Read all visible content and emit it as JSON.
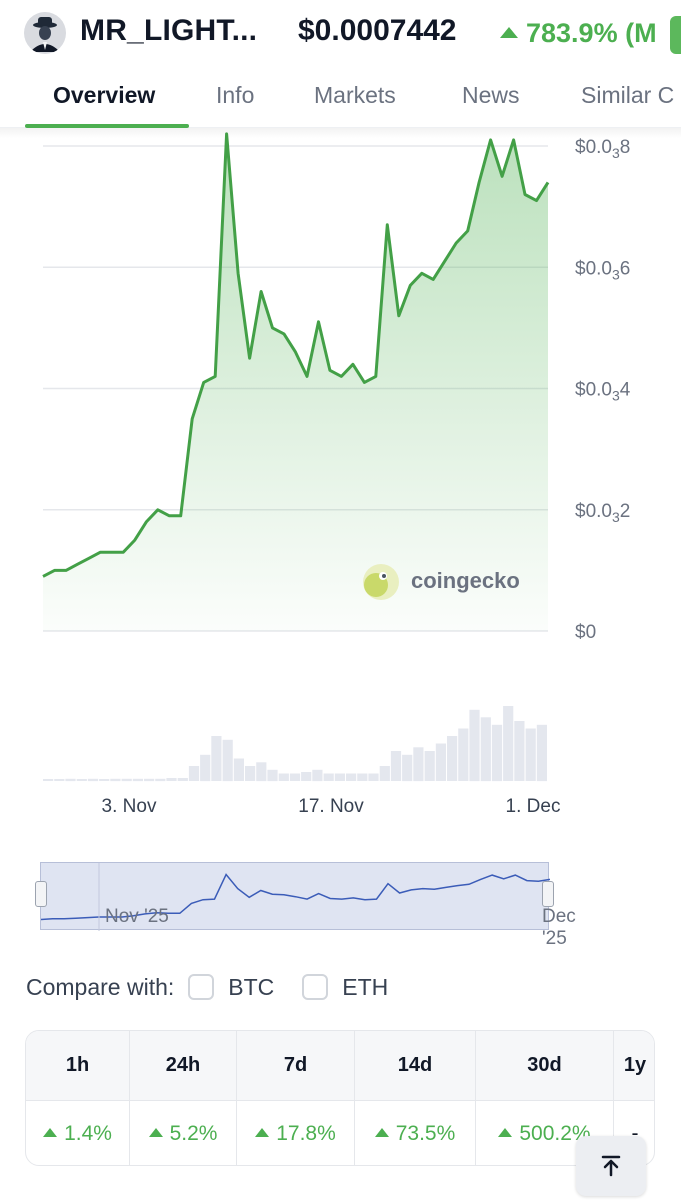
{
  "header": {
    "coin_name": "MR_LIGHT...",
    "price": "$0.0007442",
    "change": "783.9% (M",
    "avatar_icon": "anonymous-man-avatar-icon"
  },
  "tabs": [
    {
      "label": "Overview",
      "active": true
    },
    {
      "label": "Info",
      "active": false
    },
    {
      "label": "Markets",
      "active": false
    },
    {
      "label": "News",
      "active": false
    },
    {
      "label": "Similar C",
      "active": false
    }
  ],
  "chart_data": {
    "type": "area",
    "series": [
      {
        "name": "",
        "color": "#4caf50",
        "note_x_in_days_from_oct_27": true
      }
    ],
    "y_tick_labels": [
      {
        "base": "$0.0",
        "sub": "3",
        "tail": "8",
        "value": 0.0008
      },
      {
        "base": "$0.0",
        "sub": "3",
        "tail": "6",
        "value": 0.0006
      },
      {
        "base": "$0.0",
        "sub": "3",
        "tail": "4",
        "value": 0.0004
      },
      {
        "base": "$0.0",
        "sub": "3",
        "tail": "2",
        "value": 0.0002
      },
      {
        "base": "$0",
        "sub": "",
        "tail": "",
        "value": 0
      }
    ],
    "x_tick_labels": [
      "3. Nov",
      "17. Nov",
      "1. Dec"
    ],
    "ylim": [
      0,
      0.0008
    ],
    "x": [
      "Oct 27",
      "Oct 28",
      "Oct 29",
      "Oct 30",
      "Oct 31",
      "Nov 1",
      "Nov 2",
      "Nov 3",
      "Nov 4",
      "Nov 5",
      "Nov 6",
      "Nov 7",
      "Nov 8",
      "Nov 9",
      "Nov 9",
      "Nov 10",
      "Nov 10",
      "Nov 11",
      "Nov 12",
      "Nov 12",
      "Nov 13",
      "Nov 13",
      "Nov 14",
      "Nov 15",
      "Nov 15",
      "Nov 16",
      "Nov 17",
      "Nov 18",
      "Nov 19",
      "Nov 19",
      "Nov 20",
      "Nov 21",
      "Nov 22",
      "Nov 23",
      "Nov 24",
      "Nov 25",
      "Nov 26",
      "Nov 27",
      "Nov 28",
      "Nov 28",
      "Nov 29",
      "Nov 30",
      "Dec 1",
      "Dec 2",
      "Dec 3"
    ],
    "values": [
      9e-05,
      0.0001,
      0.0001,
      0.00011,
      0.00012,
      0.00013,
      0.00013,
      0.00013,
      0.00015,
      0.00018,
      0.0002,
      0.00019,
      0.00019,
      0.00035,
      0.00041,
      0.00042,
      0.00082,
      0.00059,
      0.00045,
      0.00056,
      0.0005,
      0.00049,
      0.00046,
      0.00042,
      0.00051,
      0.00043,
      0.00042,
      0.00044,
      0.00041,
      0.00042,
      0.00067,
      0.00052,
      0.00057,
      0.00059,
      0.00058,
      0.00061,
      0.00064,
      0.00066,
      0.00074,
      0.00081,
      0.00075,
      0.00081,
      0.00072,
      0.00071,
      0.00074
    ],
    "volume_relative": [
      0.02,
      0.02,
      0.03,
      0.02,
      0.03,
      0.02,
      0.03,
      0.03,
      0.03,
      0.03,
      0.03,
      0.04,
      0.04,
      0.2,
      0.35,
      0.6,
      0.55,
      0.3,
      0.2,
      0.25,
      0.15,
      0.1,
      0.1,
      0.12,
      0.15,
      0.1,
      0.1,
      0.1,
      0.1,
      0.1,
      0.2,
      0.4,
      0.35,
      0.45,
      0.4,
      0.5,
      0.6,
      0.7,
      0.95,
      0.85,
      0.75,
      1.0,
      0.8,
      0.7,
      0.75
    ],
    "watermark": "coingecko",
    "grid": true
  },
  "navigator": {
    "left_label": "Nov '25",
    "right_label": "Dec '25"
  },
  "compare": {
    "label": "Compare with:",
    "options": [
      {
        "label": "BTC",
        "checked": false
      },
      {
        "label": "ETH",
        "checked": false
      }
    ]
  },
  "performance": [
    {
      "period": "1h",
      "change": "1.4%",
      "up": true
    },
    {
      "period": "24h",
      "change": "5.2%",
      "up": true
    },
    {
      "period": "7d",
      "change": "17.8%",
      "up": true
    },
    {
      "period": "14d",
      "change": "73.5%",
      "up": true
    },
    {
      "period": "30d",
      "change": "500.2%",
      "up": true
    },
    {
      "period": "1y",
      "change": "-",
      "up": false
    }
  ],
  "scroll_top_icon": "arrow-up-to-top-icon",
  "colors": {
    "accent": "#4caf50",
    "text": "#111827",
    "muted": "#6b7280"
  }
}
